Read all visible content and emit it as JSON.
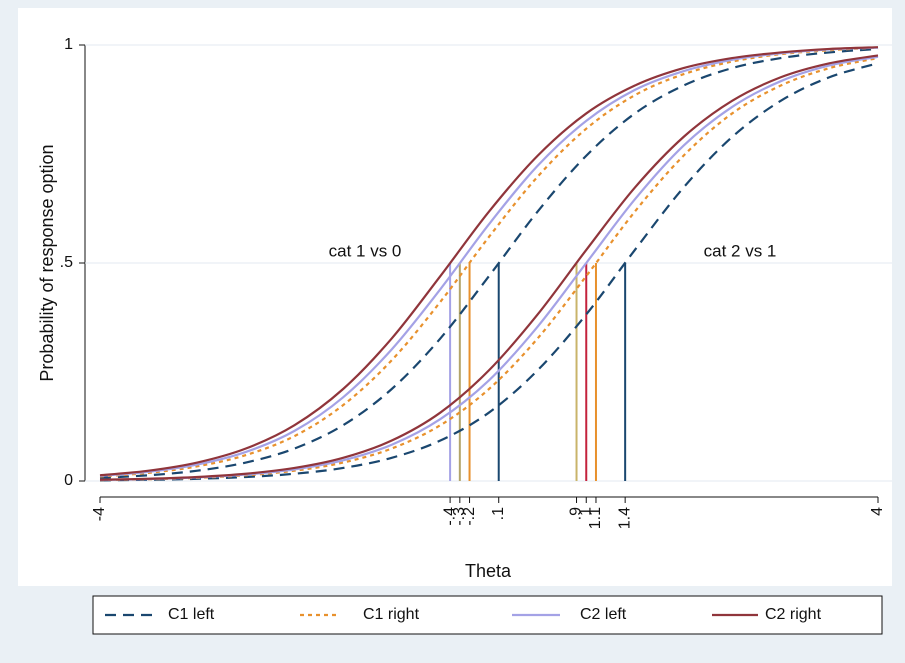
{
  "chart_data": {
    "type": "line",
    "xlabel": "Theta",
    "ylabel": "Probability of response option",
    "annotations": [
      "cat 1 vs 0",
      "cat 2 vs 1"
    ],
    "x": [
      -4,
      -3.5,
      -3,
      -2.5,
      -2,
      -1.5,
      -1,
      -0.5,
      0,
      0.5,
      1,
      1.5,
      2,
      2.5,
      3,
      3.5,
      4
    ],
    "xlim": [
      -4,
      4
    ],
    "ylim": [
      0,
      1
    ],
    "xticks": [
      -4,
      {
        "value": -0.4,
        "label": "-.4"
      },
      {
        "value": -0.3,
        "label": "-.3"
      },
      {
        "value": -0.2,
        "label": "-.2"
      },
      {
        "value": 0.1,
        "label": ".1"
      },
      {
        "value": 0.9,
        "label": ".9"
      },
      1,
      1.1,
      1.4,
      4
    ],
    "yticks": [
      0,
      {
        "value": 0.5,
        "label": ".5"
      },
      1
    ],
    "grid": true,
    "legend": "bottom",
    "series": [
      {
        "name": "C1 left",
        "color": "#1a476f",
        "dash": "dashed",
        "values": [
          [
            0.0073,
            0.0131,
            0.0236,
            0.0423,
            0.0745,
            0.128,
            0.211,
            0.327,
            0.47,
            0.618,
            0.746,
            0.843,
            0.907,
            0.947,
            0.97,
            0.983,
            0.991
          ],
          [
            0.0015,
            0.0028,
            0.0051,
            0.0092,
            0.0166,
            0.0299,
            0.0532,
            0.0928,
            0.157,
            0.254,
            0.382,
            0.53,
            0.673,
            0.789,
            0.872,
            0.926,
            0.958
          ]
        ]
      },
      {
        "name": "C1 right",
        "color": "#e8912d",
        "dash": "dotted",
        "values": [
          [
            0.0104,
            0.0187,
            0.0336,
            0.0595,
            0.103,
            0.174,
            0.277,
            0.411,
            0.56,
            0.698,
            0.808,
            0.885,
            0.933,
            0.962,
            0.979,
            0.988,
            0.994
          ],
          [
            0.0022,
            0.004,
            0.0073,
            0.0131,
            0.0236,
            0.0423,
            0.0745,
            0.128,
            0.211,
            0.327,
            0.47,
            0.618,
            0.746,
            0.843,
            0.907,
            0.947,
            0.97
          ]
        ]
      },
      {
        "name": "C2 left",
        "color": "#a4a2e6",
        "dash": "solid",
        "values": [
          [
            0.0117,
            0.0211,
            0.0377,
            0.0666,
            0.115,
            0.192,
            0.302,
            0.44,
            0.589,
            0.723,
            0.826,
            0.897,
            0.94,
            0.966,
            0.981,
            0.99,
            0.994
          ],
          [
            0.0025,
            0.0045,
            0.0082,
            0.0148,
            0.0266,
            0.0474,
            0.0832,
            0.142,
            0.231,
            0.354,
            0.5,
            0.646,
            0.769,
            0.858,
            0.917,
            0.953,
            0.973
          ]
        ]
      },
      {
        "name": "C2 right",
        "color": "#90353b",
        "dash": "solid",
        "values": [
          [
            0.0131,
            0.0236,
            0.0423,
            0.0745,
            0.128,
            0.211,
            0.327,
            0.47,
            0.618,
            0.746,
            0.843,
            0.907,
            0.947,
            0.97,
            0.983,
            0.991,
            0.995
          ],
          [
            0.0028,
            0.0051,
            0.0092,
            0.0166,
            0.0299,
            0.0532,
            0.0928,
            0.157,
            0.254,
            0.382,
            0.53,
            0.673,
            0.789,
            0.872,
            0.926,
            0.958,
            0.976
          ]
        ]
      }
    ],
    "droplines": [
      {
        "x": -0.4,
        "y": 0.5,
        "color": "#a4a2e6"
      },
      {
        "x": -0.3,
        "y": 0.5,
        "color": "#b3a56a"
      },
      {
        "x": -0.2,
        "y": 0.5,
        "color": "#e8912d"
      },
      {
        "x": 0.1,
        "y": 0.5,
        "color": "#1a476f"
      },
      {
        "x": 0.9,
        "y": 0.5,
        "color": "#c9b46a"
      },
      {
        "x": 1,
        "y": 0.5,
        "color": "#c4223c"
      },
      {
        "x": 1.1,
        "y": 0.5,
        "color": "#e8912d"
      },
      {
        "x": 1.4,
        "y": 0.5,
        "color": "#1a476f"
      }
    ]
  }
}
